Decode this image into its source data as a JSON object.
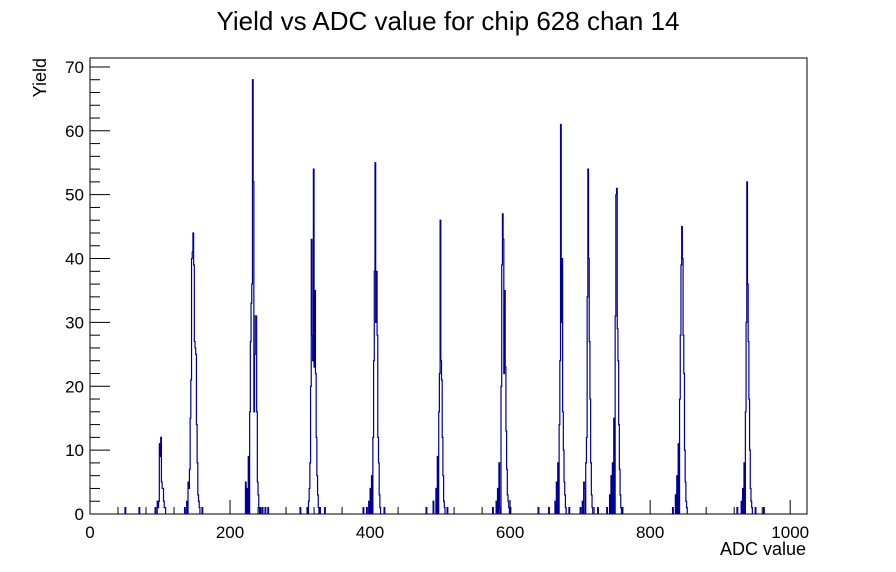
{
  "chart_data": {
    "type": "histogram",
    "title": "Yield vs ADC value for chip 628 chan 14",
    "xlabel": "ADC value",
    "ylabel": "Yield",
    "xlim": [
      0,
      1024
    ],
    "ylim": [
      0,
      71.4
    ],
    "x_ticks": [
      0,
      200,
      400,
      600,
      800,
      1000
    ],
    "y_ticks": [
      0,
      10,
      20,
      30,
      40,
      50,
      60,
      70
    ],
    "grid": false,
    "line_color": "#000099",
    "bin_width": 1,
    "peaks": [
      {
        "bins": [
          [
            50,
            1
          ],
          [
            70,
            1
          ],
          [
            93,
            1
          ],
          [
            96,
            2
          ],
          [
            97,
            1
          ],
          [
            98,
            2
          ],
          [
            99,
            11
          ],
          [
            100,
            9
          ],
          [
            101,
            12
          ],
          [
            102,
            5
          ],
          [
            103,
            4
          ],
          [
            104,
            4
          ],
          [
            105,
            2
          ],
          [
            106,
            1
          ],
          [
            107,
            1
          ]
        ]
      },
      {
        "bins": [
          [
            135,
            1
          ],
          [
            138,
            2
          ],
          [
            140,
            5
          ],
          [
            141,
            4
          ],
          [
            142,
            7
          ],
          [
            143,
            15
          ],
          [
            144,
            21
          ],
          [
            145,
            40
          ],
          [
            146,
            41
          ],
          [
            147,
            44
          ],
          [
            148,
            39
          ],
          [
            149,
            27
          ],
          [
            150,
            26
          ],
          [
            151,
            25
          ],
          [
            152,
            14
          ],
          [
            153,
            8
          ],
          [
            154,
            3
          ],
          [
            155,
            2
          ],
          [
            156,
            1
          ],
          [
            160,
            1
          ]
        ]
      },
      {
        "bins": [
          [
            222,
            5
          ],
          [
            224,
            4
          ],
          [
            226,
            9
          ],
          [
            228,
            16
          ],
          [
            229,
            27
          ],
          [
            230,
            33
          ],
          [
            231,
            36
          ],
          [
            232,
            68
          ],
          [
            233,
            52
          ],
          [
            234,
            16
          ],
          [
            235,
            25
          ],
          [
            236,
            31
          ],
          [
            237,
            31
          ],
          [
            238,
            16
          ],
          [
            239,
            5
          ],
          [
            240,
            3
          ],
          [
            241,
            1
          ],
          [
            243,
            1
          ],
          [
            246,
            1
          ],
          [
            250,
            1
          ],
          [
            254,
            1
          ]
        ]
      },
      {
        "bins": [
          [
            300,
            1
          ],
          [
            310,
            1
          ],
          [
            312,
            2
          ],
          [
            313,
            4
          ],
          [
            314,
            8
          ],
          [
            315,
            20
          ],
          [
            316,
            43
          ],
          [
            317,
            28
          ],
          [
            318,
            24
          ],
          [
            319,
            54
          ],
          [
            320,
            23
          ],
          [
            321,
            35
          ],
          [
            322,
            22
          ],
          [
            323,
            12
          ],
          [
            324,
            6
          ],
          [
            325,
            3
          ],
          [
            326,
            1
          ],
          [
            328,
            1
          ],
          [
            335,
            1
          ]
        ]
      },
      {
        "bins": [
          [
            390,
            1
          ],
          [
            395,
            1
          ],
          [
            398,
            2
          ],
          [
            400,
            4
          ],
          [
            402,
            6
          ],
          [
            404,
            12
          ],
          [
            405,
            24
          ],
          [
            406,
            38
          ],
          [
            407,
            55
          ],
          [
            408,
            30
          ],
          [
            409,
            38
          ],
          [
            410,
            28
          ],
          [
            411,
            12
          ],
          [
            412,
            8
          ],
          [
            413,
            3
          ],
          [
            414,
            1
          ],
          [
            420,
            1
          ]
        ]
      },
      {
        "bins": [
          [
            480,
            1
          ],
          [
            490,
            2
          ],
          [
            494,
            4
          ],
          [
            496,
            9
          ],
          [
            498,
            16
          ],
          [
            499,
            22
          ],
          [
            500,
            46
          ],
          [
            501,
            24
          ],
          [
            502,
            21
          ],
          [
            503,
            12
          ],
          [
            504,
            6
          ],
          [
            505,
            2
          ],
          [
            506,
            1
          ],
          [
            510,
            1
          ]
        ]
      },
      {
        "bins": [
          [
            575,
            1
          ],
          [
            580,
            2
          ],
          [
            582,
            4
          ],
          [
            584,
            8
          ],
          [
            585,
            1
          ],
          [
            587,
            20
          ],
          [
            588,
            39
          ],
          [
            589,
            47
          ],
          [
            590,
            43
          ],
          [
            591,
            22
          ],
          [
            592,
            35
          ],
          [
            593,
            23
          ],
          [
            594,
            13
          ],
          [
            595,
            7
          ],
          [
            596,
            3
          ],
          [
            597,
            2
          ],
          [
            598,
            1
          ],
          [
            600,
            1
          ]
        ]
      },
      {
        "bins": [
          [
            640,
            1
          ],
          [
            655,
            1
          ],
          [
            664,
            2
          ],
          [
            666,
            5
          ],
          [
            668,
            8
          ],
          [
            670,
            14
          ],
          [
            671,
            24
          ],
          [
            672,
            61
          ],
          [
            673,
            30
          ],
          [
            674,
            40
          ],
          [
            675,
            16
          ],
          [
            676,
            10
          ],
          [
            677,
            5
          ],
          [
            678,
            3
          ],
          [
            679,
            1
          ],
          [
            684,
            1
          ]
        ]
      },
      {
        "bins": [
          [
            700,
            1
          ],
          [
            703,
            2
          ],
          [
            705,
            5
          ],
          [
            706,
            4
          ],
          [
            708,
            8
          ],
          [
            709,
            12
          ],
          [
            710,
            34
          ],
          [
            711,
            54
          ],
          [
            712,
            40
          ],
          [
            713,
            27
          ],
          [
            714,
            18
          ],
          [
            715,
            8
          ],
          [
            716,
            3
          ],
          [
            717,
            1
          ],
          [
            725,
            1
          ]
        ]
      },
      {
        "bins": [
          [
            738,
            1
          ],
          [
            742,
            3
          ],
          [
            744,
            6
          ],
          [
            746,
            8
          ],
          [
            748,
            15
          ],
          [
            750,
            31
          ],
          [
            751,
            50
          ],
          [
            752,
            51
          ],
          [
            753,
            29
          ],
          [
            754,
            24
          ],
          [
            755,
            14
          ],
          [
            756,
            7
          ],
          [
            757,
            3
          ],
          [
            758,
            1
          ],
          [
            760,
            1
          ]
        ]
      },
      {
        "bins": [
          [
            832,
            1
          ],
          [
            836,
            3
          ],
          [
            838,
            6
          ],
          [
            840,
            11
          ],
          [
            842,
            18
          ],
          [
            843,
            28
          ],
          [
            844,
            39
          ],
          [
            845,
            45
          ],
          [
            846,
            40
          ],
          [
            847,
            28
          ],
          [
            848,
            22
          ],
          [
            849,
            10
          ],
          [
            850,
            5
          ],
          [
            851,
            2
          ],
          [
            852,
            1
          ]
        ]
      },
      {
        "bins": [
          [
            924,
            1
          ],
          [
            930,
            2
          ],
          [
            932,
            4
          ],
          [
            934,
            8
          ],
          [
            936,
            16
          ],
          [
            937,
            30
          ],
          [
            938,
            52
          ],
          [
            939,
            36
          ],
          [
            940,
            27
          ],
          [
            941,
            18
          ],
          [
            942,
            10
          ],
          [
            943,
            4
          ],
          [
            944,
            2
          ],
          [
            945,
            1
          ],
          [
            950,
            1
          ],
          [
            962,
            1
          ]
        ]
      }
    ]
  }
}
